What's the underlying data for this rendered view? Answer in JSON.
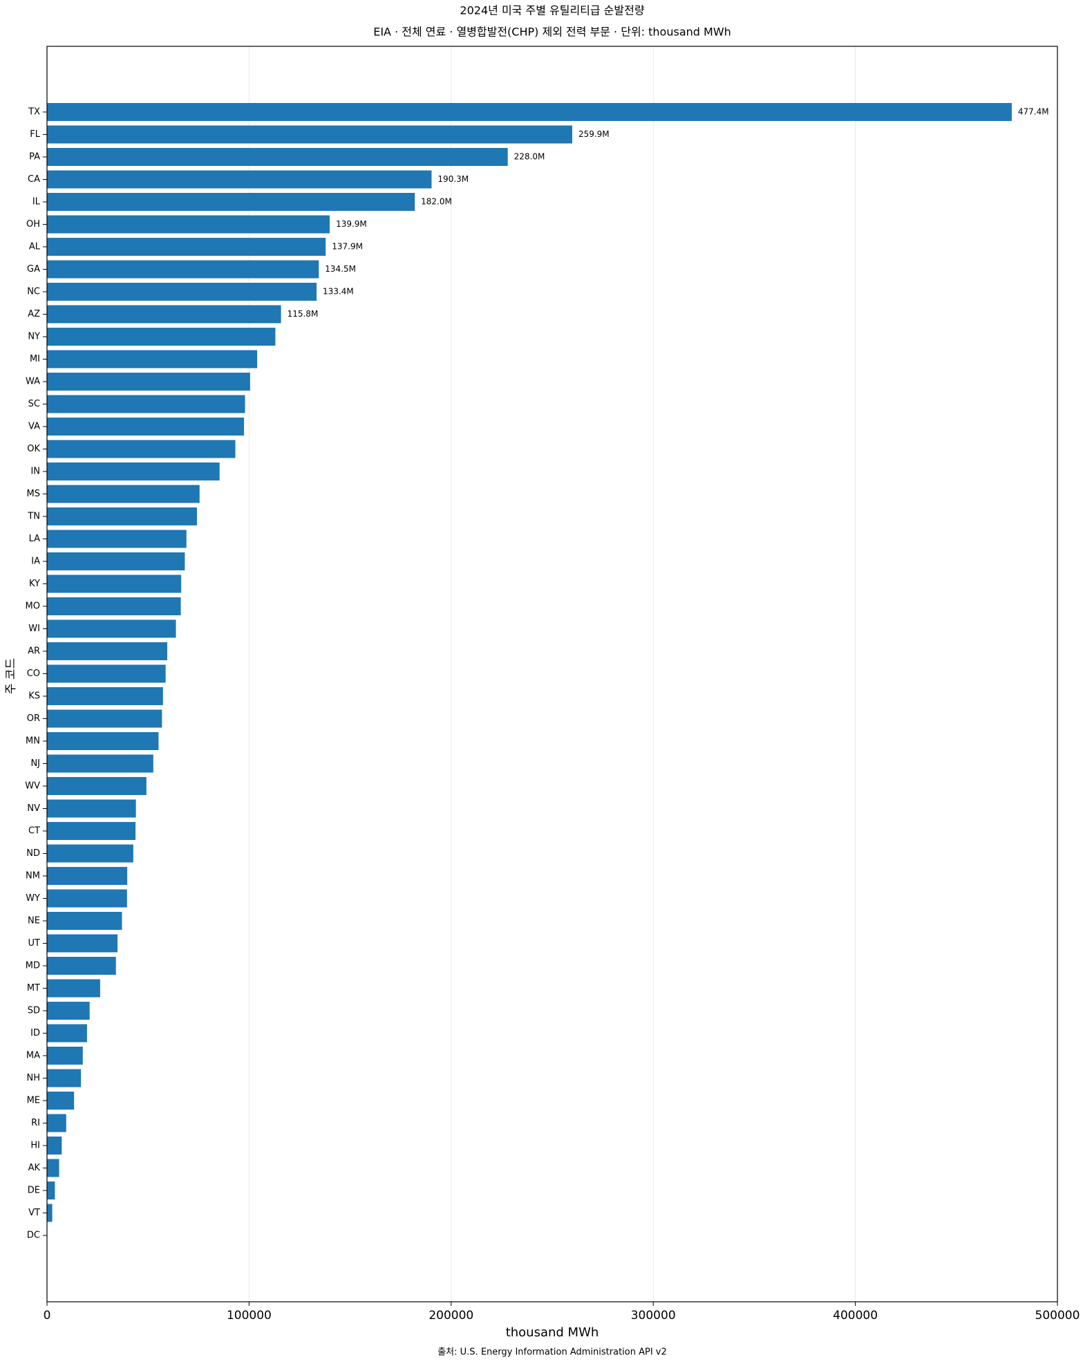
{
  "chart_data": {
    "type": "barh",
    "title": "2024년 미국 주별 유틸리티급 순발전량",
    "subtitle": "EIA · 전체 연료 · 열병합발전(CHP) 제외 전력 부문 · 단위: thousand MWh",
    "x_label": "thousand MWh",
    "y_label": "주 코드",
    "source": "출처: U.S. Energy Information Administration API v2",
    "color": "#1f77b4",
    "grid": true,
    "xlim": [
      0,
      500000
    ],
    "xticks": [
      0,
      100000,
      200000,
      300000,
      400000,
      500000
    ],
    "categories": [
      "TX",
      "FL",
      "PA",
      "CA",
      "IL",
      "OH",
      "AL",
      "GA",
      "NC",
      "AZ",
      "NY",
      "MI",
      "WA",
      "SC",
      "VA",
      "OK",
      "IN",
      "MS",
      "TN",
      "LA",
      "IA",
      "KY",
      "MO",
      "WI",
      "AR",
      "CO",
      "KS",
      "OR",
      "MN",
      "NJ",
      "WV",
      "NV",
      "CT",
      "ND",
      "NM",
      "WY",
      "NE",
      "UT",
      "MD",
      "MT",
      "SD",
      "ID",
      "MA",
      "NH",
      "ME",
      "RI",
      "HI",
      "AK",
      "DE",
      "VT",
      "DC"
    ],
    "values": [
      477400,
      259900,
      228000,
      190300,
      182000,
      139900,
      137900,
      134500,
      133400,
      115800,
      113000,
      104000,
      100500,
      98000,
      97500,
      93200,
      85400,
      75500,
      74200,
      69000,
      68200,
      66400,
      66200,
      63800,
      59500,
      58700,
      57400,
      56900,
      55200,
      52600,
      49200,
      44000,
      43800,
      42700,
      39700,
      39600,
      37100,
      34900,
      34100,
      26300,
      21100,
      19800,
      17700,
      16800,
      13400,
      9500,
      7300,
      6000,
      3900,
      2600,
      0
    ],
    "value_labels": [
      "477.4M",
      "259.9M",
      "228.0M",
      "190.3M",
      "182.0M",
      "139.9M",
      "137.9M",
      "134.5M",
      "133.4M",
      "115.8M",
      null,
      null,
      null,
      null,
      null,
      null,
      null,
      null,
      null,
      null,
      null,
      null,
      null,
      null,
      null,
      null,
      null,
      null,
      null,
      null,
      null,
      null,
      null,
      null,
      null,
      null,
      null,
      null,
      null,
      null,
      null,
      null,
      null,
      null,
      null,
      null,
      null,
      null,
      null,
      null,
      null
    ]
  }
}
